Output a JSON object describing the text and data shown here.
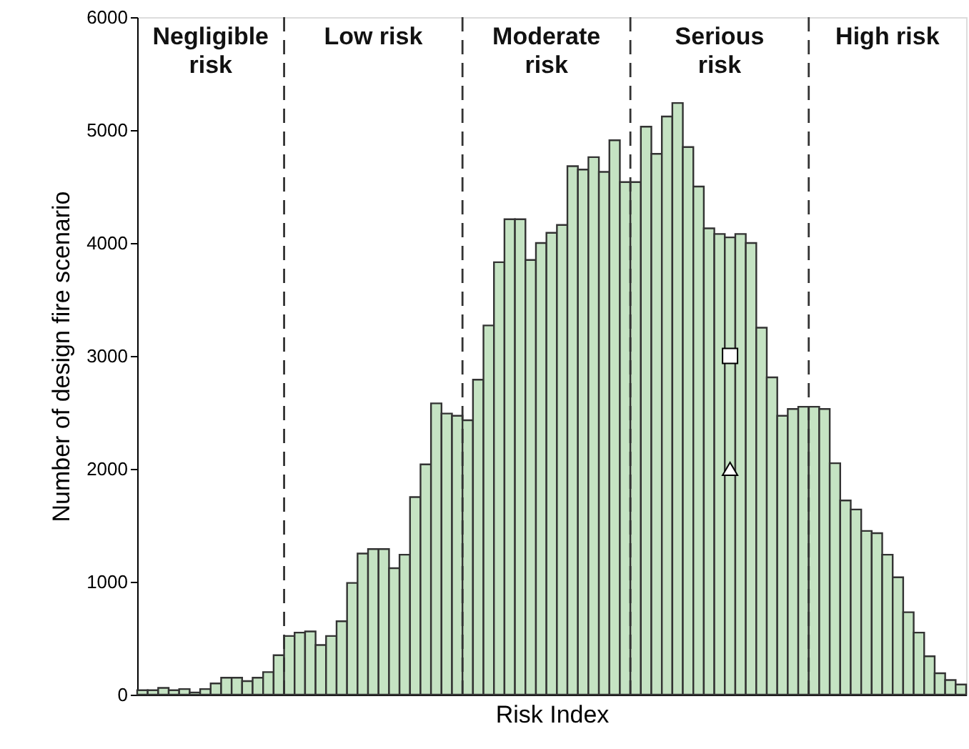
{
  "chart_data": {
    "type": "bar",
    "xlabel": "Risk Index",
    "ylabel": "Number of design fire scenario",
    "categories": [
      null,
      null,
      null,
      null,
      null,
      null,
      null,
      null,
      null,
      null,
      null,
      null,
      null,
      null,
      null,
      null,
      null,
      null,
      null,
      null,
      null,
      null,
      null,
      null,
      null,
      null,
      null,
      null,
      null,
      null,
      null,
      null,
      null,
      null,
      null,
      null,
      null,
      null,
      null,
      null,
      null,
      null,
      null,
      null,
      null,
      null,
      null,
      null,
      null,
      null,
      null,
      null,
      null,
      null,
      null,
      null,
      null,
      null,
      null,
      null,
      null,
      null,
      null,
      null,
      null,
      null,
      null,
      null,
      null,
      null,
      null,
      null,
      null,
      null,
      null,
      null,
      null,
      null,
      null
    ],
    "values": [
      40,
      40,
      60,
      40,
      50,
      20,
      50,
      100,
      150,
      150,
      120,
      150,
      200,
      350,
      520,
      550,
      560,
      440,
      520,
      650,
      990,
      1250,
      1290,
      1290,
      1120,
      1240,
      1750,
      2040,
      2580,
      2490,
      2470,
      2430,
      2790,
      3270,
      3830,
      4210,
      4210,
      3850,
      4000,
      4090,
      4160,
      4680,
      4650,
      4760,
      4630,
      4910,
      4540,
      4540,
      5030,
      4790,
      5120,
      5240,
      4850,
      4500,
      4130,
      4080,
      4050,
      4080,
      4000,
      3250,
      2810,
      2470,
      2530,
      2550,
      2550,
      2530,
      2050,
      1720,
      1640,
      1450,
      1430,
      1240,
      1040,
      730,
      550,
      340,
      190,
      130,
      90
    ],
    "color": "#c5e3c3",
    "series": [
      {
        "type": "scatter",
        "marker": "square",
        "color": "#ffffff",
        "values": [
          null,
          null,
          null,
          null,
          null,
          null,
          null,
          null,
          null,
          null,
          null,
          null,
          null,
          null,
          null,
          null,
          null,
          null,
          null,
          null,
          null,
          null,
          null,
          null,
          null,
          null,
          null,
          null,
          null,
          null,
          null,
          null,
          null,
          null,
          null,
          null,
          null,
          null,
          null,
          null,
          null,
          null,
          null,
          null,
          null,
          null,
          null,
          null,
          null,
          null,
          null,
          null,
          null,
          null,
          null,
          null,
          3000,
          null,
          null,
          null,
          null,
          null,
          null,
          null,
          null,
          null,
          null,
          null,
          null,
          null,
          null,
          null,
          null,
          null,
          null,
          null,
          null,
          null,
          null
        ]
      },
      {
        "type": "scatter",
        "marker": "triangle",
        "color": "#ffffff",
        "values": [
          null,
          null,
          null,
          null,
          null,
          null,
          null,
          null,
          null,
          null,
          null,
          null,
          null,
          null,
          null,
          null,
          null,
          null,
          null,
          null,
          null,
          null,
          null,
          null,
          null,
          null,
          null,
          null,
          null,
          null,
          null,
          null,
          null,
          null,
          null,
          null,
          null,
          null,
          null,
          null,
          null,
          null,
          null,
          null,
          null,
          null,
          null,
          null,
          null,
          null,
          null,
          null,
          null,
          null,
          null,
          null,
          2000,
          null,
          null,
          null,
          null,
          null,
          null,
          null,
          null,
          null,
          null,
          null,
          null,
          null,
          null,
          null,
          null,
          null,
          null,
          null,
          null,
          null,
          null
        ]
      }
    ],
    "ylim": [
      0,
      6000
    ],
    "yticks": [
      0,
      1000,
      2000,
      3000,
      4000,
      5000,
      6000
    ],
    "tick_labels": "y",
    "grid": false,
    "annotations": [
      "Negligible\nrisk",
      "Low risk",
      "Moderate\nrisk",
      "Serious\nrisk",
      "High risk"
    ]
  }
}
